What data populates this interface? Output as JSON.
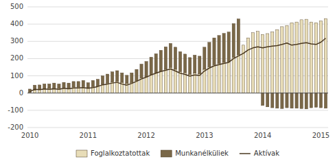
{
  "chart_data": {
    "type": "bar",
    "stacked": true,
    "grid": true,
    "legend": "bottom",
    "categories": [
      "2010",
      null,
      null,
      null,
      null,
      null,
      null,
      null,
      null,
      null,
      null,
      null,
      "2011",
      null,
      null,
      null,
      null,
      null,
      null,
      null,
      null,
      null,
      null,
      null,
      "2012",
      null,
      null,
      null,
      null,
      null,
      null,
      null,
      null,
      null,
      null,
      null,
      "2013",
      null,
      null,
      null,
      null,
      null,
      null,
      null,
      null,
      null,
      null,
      null,
      "2014",
      null,
      null,
      null,
      null,
      null,
      null,
      null,
      null,
      null,
      null,
      null,
      "2015",
      null
    ],
    "series": [
      {
        "name": "Foglalkoztatottak",
        "color": "#e8ddb8",
        "values": [
          5,
          18,
          22,
          25,
          28,
          30,
          28,
          32,
          30,
          35,
          35,
          38,
          32,
          38,
          42,
          52,
          58,
          65,
          68,
          62,
          55,
          62,
          72,
          88,
          95,
          108,
          118,
          128,
          138,
          148,
          138,
          125,
          118,
          108,
          115,
          112,
          138,
          152,
          165,
          172,
          178,
          182,
          208,
          222,
          278,
          320,
          350,
          358,
          340,
          345,
          355,
          368,
          385,
          392,
          408,
          412,
          425,
          428,
          412,
          408,
          418,
          432
        ]
      },
      {
        "name": "Munkanélküliek",
        "color": "#7a6848",
        "values": [
          18,
          28,
          25,
          28,
          25,
          28,
          25,
          30,
          28,
          32,
          32,
          35,
          28,
          35,
          38,
          48,
          52,
          58,
          62,
          55,
          48,
          55,
          65,
          80,
          88,
          100,
          110,
          120,
          130,
          140,
          128,
          115,
          108,
          98,
          105,
          102,
          128,
          142,
          155,
          162,
          168,
          172,
          195,
          208,
          0,
          0,
          0,
          0,
          -72,
          -80,
          -85,
          -88,
          -90,
          -85,
          -88,
          -88,
          -90,
          -92,
          -85,
          -82,
          -85,
          -88
        ]
      },
      {
        "name": "Aktívak",
        "type": "line",
        "color": "#4a3820",
        "values": [
          8,
          22,
          20,
          24,
          22,
          25,
          22,
          28,
          25,
          30,
          30,
          32,
          28,
          32,
          38,
          48,
          52,
          58,
          62,
          52,
          46,
          56,
          68,
          82,
          92,
          105,
          115,
          125,
          132,
          140,
          128,
          115,
          108,
          98,
          105,
          102,
          128,
          145,
          158,
          165,
          172,
          178,
          200,
          215,
          230,
          250,
          262,
          268,
          262,
          268,
          272,
          275,
          282,
          290,
          278,
          282,
          288,
          292,
          285,
          282,
          295,
          318
        ]
      }
    ],
    "ylim": [
      -200,
      500
    ],
    "yticks": [
      -200,
      -100,
      0,
      100,
      200,
      300,
      400,
      500
    ]
  }
}
